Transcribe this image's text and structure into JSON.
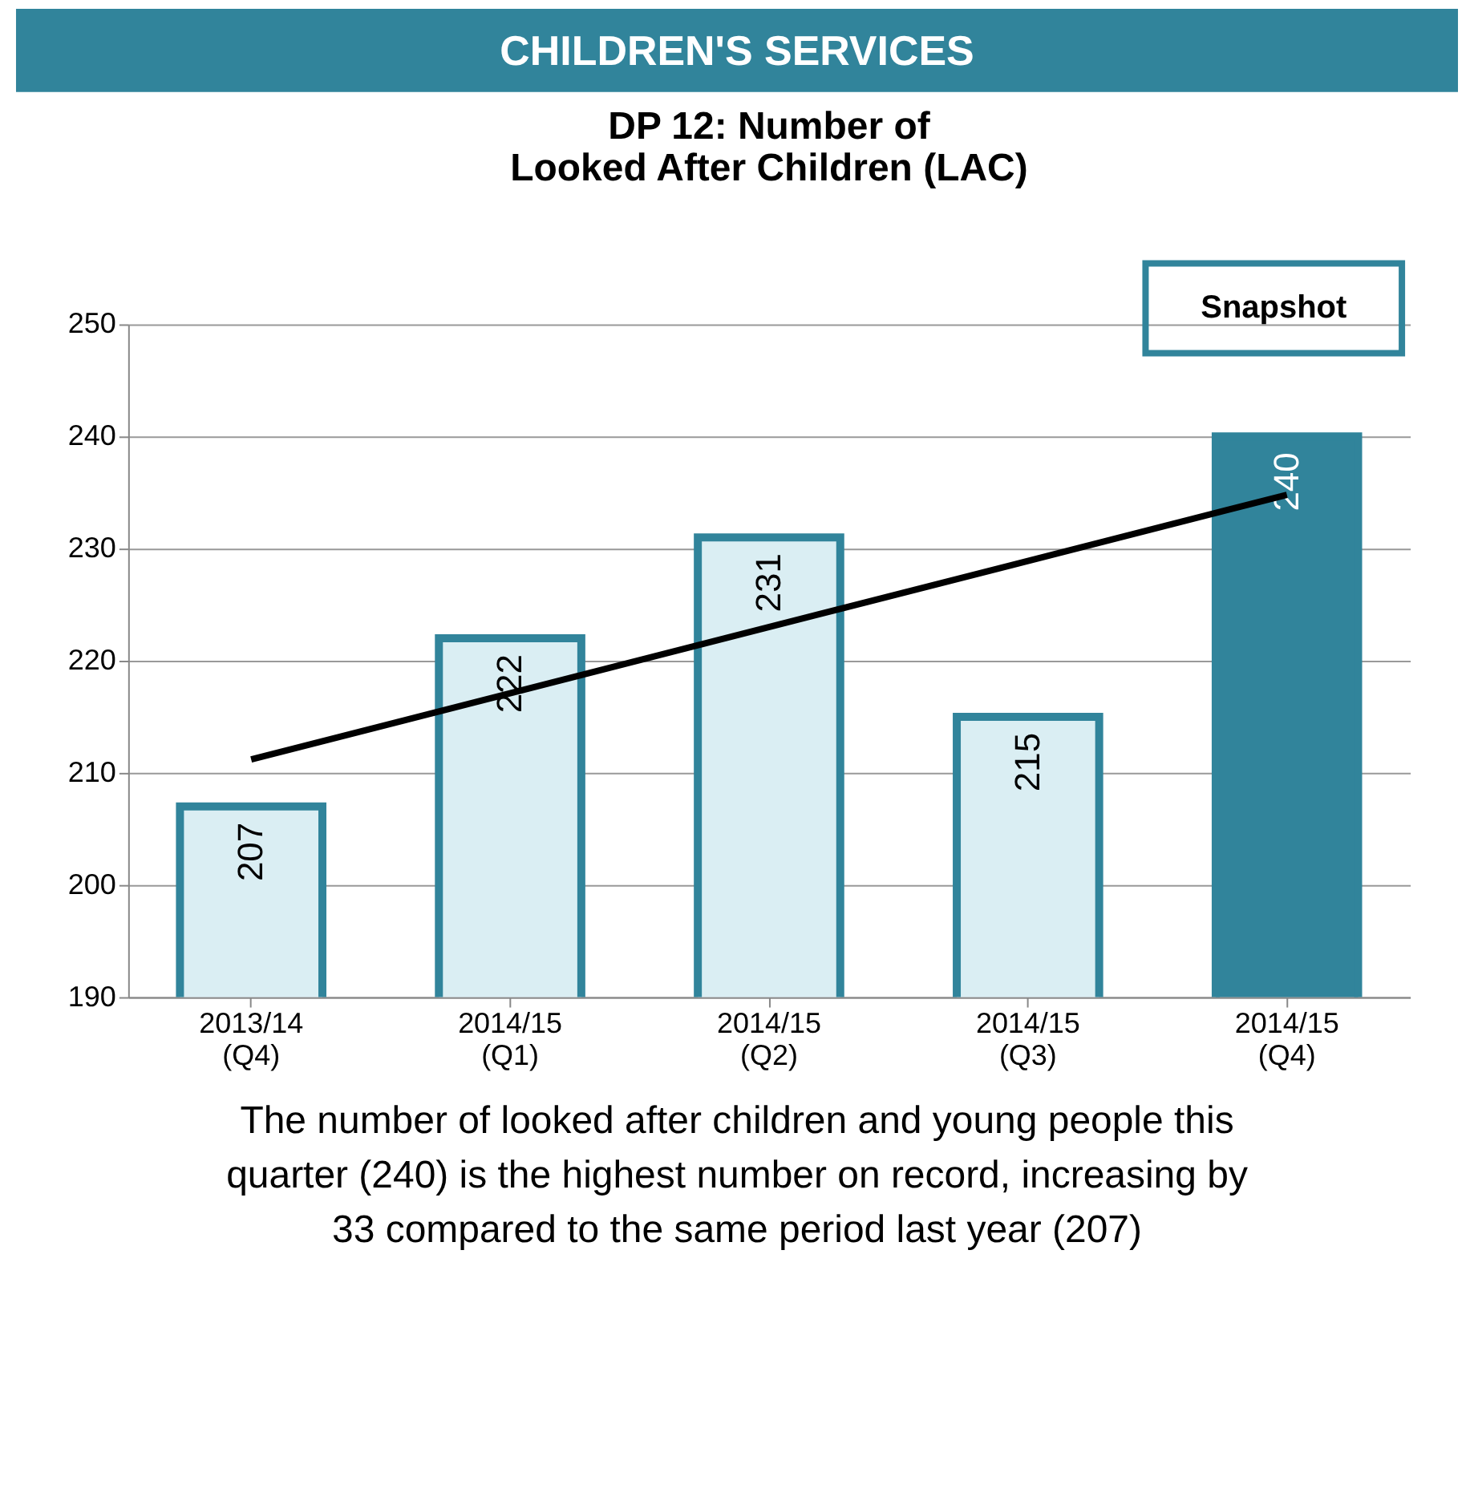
{
  "chart_data": {
    "type": "bar",
    "title": "CHILDREN'S SERVICES",
    "subtitle": "DP 12: Number of\nLooked After Children (LAC)",
    "categories": [
      "2013/14 (Q4)",
      "2014/15 (Q1)",
      "2014/15 (Q2)",
      "2014/15 (Q3)",
      "2014/15 (Q4)"
    ],
    "series": [
      {
        "values": [
          207,
          222,
          231,
          215,
          240
        ],
        "value_labels": [
          "207",
          "222",
          "231",
          "215",
          "240"
        ],
        "colors": [
          "#daeef3",
          "#daeef3",
          "#daeef3",
          "#daeef3",
          "#31849b"
        ]
      },
      {
        "type": "line",
        "x": [
          "2013/14 (Q4)",
          "2014/15 (Q4)"
        ],
        "values": [
          211.2,
          234.8
        ],
        "color": "#000000"
      }
    ],
    "ylim": [
      190,
      250
    ],
    "yticks": [
      190,
      200,
      210,
      220,
      230,
      240,
      250
    ],
    "grid": "y",
    "annotations": [
      "Snapshot",
      "The number of looked after children and young people this\nquarter (240) is the highest number on record, increasing by\n33 compared to the same period last year (207)"
    ]
  }
}
